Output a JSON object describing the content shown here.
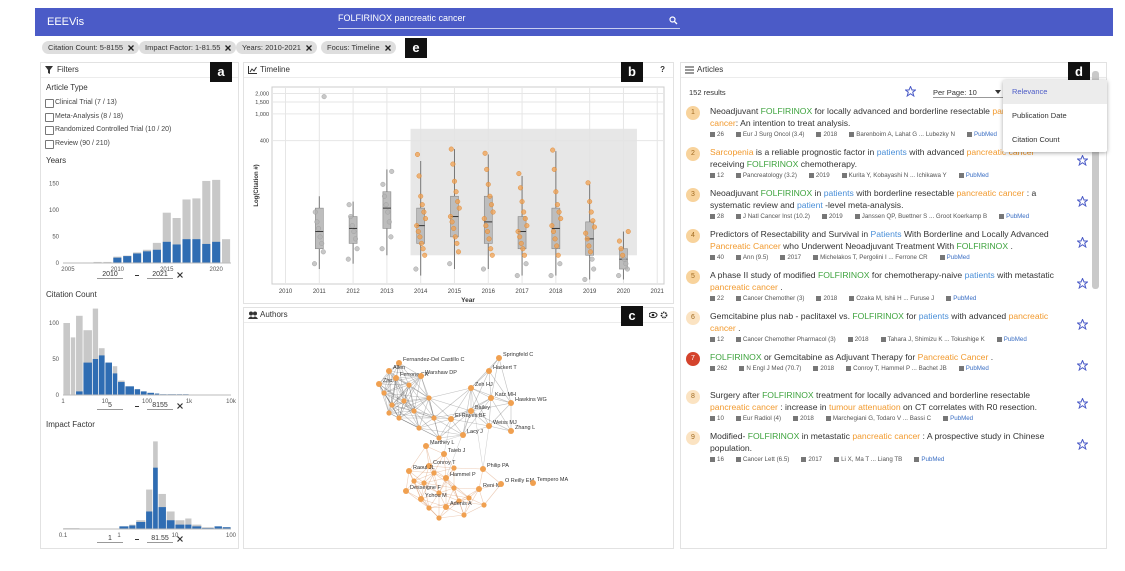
{
  "header": {
    "app_name": "EEEVis",
    "search": "FOLFIRINOX pancreatic cancer"
  },
  "chips": [
    "Citation Count: 5-8155",
    "Impact Factor: 1-81.55",
    "Years: 2010-2021",
    "Focus: Timeline"
  ],
  "callouts": [
    "a",
    "b",
    "c",
    "d",
    "e"
  ],
  "filters": {
    "title": "Filters",
    "article_type": {
      "title": "Article Type",
      "options": [
        "Clinical Trial (7 / 13)",
        "Meta-Analysis (8 / 18)",
        "Randomized Controlled Trial (10 / 20)",
        "Review (90 / 210)"
      ]
    },
    "years": {
      "title": "Years",
      "type": "histogram",
      "x": [
        2005,
        2006,
        2007,
        2008,
        2009,
        2010,
        2011,
        2012,
        2013,
        2014,
        2015,
        2016,
        2017,
        2018,
        2019,
        2020,
        2021
      ],
      "total": [
        0,
        0,
        1,
        2,
        2,
        12,
        14,
        20,
        25,
        38,
        95,
        85,
        120,
        122,
        155,
        157,
        45
      ],
      "filtered": [
        0,
        0,
        0,
        0,
        0,
        10,
        13,
        18,
        22,
        25,
        40,
        35,
        45,
        45,
        36,
        40,
        0
      ],
      "colors": {
        "total": "#c8c8c8",
        "filtered": "#2f6db3"
      },
      "xlim": [
        2004.5,
        2021.5
      ],
      "xticks": [
        2005,
        2010,
        2015,
        2020
      ],
      "ylim": [
        0,
        170
      ],
      "yticks": [
        0,
        50,
        100,
        150
      ],
      "range": [
        "2010",
        "2021"
      ]
    },
    "citation_count": {
      "title": "Citation Count",
      "type": "histogram",
      "log_x": true,
      "bins": [
        1,
        1.5,
        2,
        3,
        5,
        7,
        10,
        15,
        20,
        30,
        50,
        70,
        100,
        150,
        200,
        300,
        500,
        700,
        1000,
        2000,
        10000
      ],
      "total": [
        100,
        80,
        110,
        90,
        120,
        65,
        45,
        40,
        20,
        12,
        8,
        5,
        3,
        2,
        1,
        1,
        1,
        1,
        0,
        0
      ],
      "filtered": [
        0,
        0,
        5,
        45,
        50,
        55,
        45,
        30,
        18,
        12,
        8,
        5,
        3,
        2,
        1,
        1,
        1,
        1,
        0,
        0
      ],
      "colors": {
        "total": "#c8c8c8",
        "filtered": "#2f6db3"
      },
      "xlim": [
        1,
        10000
      ],
      "xticks": [
        1,
        10,
        100,
        {
          "value": 1000,
          "label": "1k"
        },
        {
          "value": 10000,
          "label": "10k"
        }
      ],
      "ylim": [
        0,
        125
      ],
      "yticks": [
        0,
        50,
        100
      ],
      "range": [
        "5",
        "8155"
      ]
    },
    "impact_factor": {
      "title": "Impact Factor",
      "type": "histogram",
      "log_x": true,
      "bins": [
        0.1,
        0.2,
        0.3,
        0.5,
        0.7,
        1,
        1.5,
        2,
        3,
        4,
        5,
        7,
        10,
        15,
        20,
        30,
        50,
        70,
        100
      ],
      "total": [
        1,
        0,
        0,
        0,
        0,
        3,
        5,
        10,
        45,
        100,
        40,
        20,
        10,
        12,
        5,
        2,
        3,
        2
      ],
      "filtered": [
        0,
        0,
        0,
        0,
        0,
        3,
        4,
        8,
        20,
        70,
        25,
        10,
        5,
        5,
        3,
        1,
        3,
        2
      ],
      "colors": {
        "total": "#c8c8c8",
        "filtered": "#2f6db3"
      },
      "xlim": [
        0.1,
        100
      ],
      "xticks": [
        0.1,
        1,
        10,
        100
      ],
      "ylim": [
        0,
        105
      ],
      "range": [
        "1",
        "81.55"
      ]
    }
  },
  "timeline": {
    "title": "Timeline",
    "help": "?",
    "type": "box",
    "log_y": true,
    "grid": true,
    "ylabel": "Log(Citation #)",
    "xlabel": "Year",
    "xlim": [
      2009.6,
      2021.2
    ],
    "xticks": [
      2010,
      2011,
      2012,
      2013,
      2014,
      2015,
      2016,
      2017,
      2018,
      2019,
      2020,
      2021
    ],
    "ylim": [
      3,
      2500
    ],
    "yticks": [
      {
        "value": 2000,
        "label": "2,000"
      },
      {
        "value": 1500,
        "label": "1,500"
      },
      {
        "value": 1000,
        "label": "1,000"
      },
      400
    ],
    "brush": {
      "x": [
        2013.7,
        2020.4
      ],
      "y": [
        8,
        600
      ]
    },
    "highlight_color": "#f0a050",
    "muted_color": "#b5b5b5",
    "years": [
      2011,
      2012,
      2013,
      2014,
      2015,
      2016,
      2017,
      2018,
      2019,
      2020
    ],
    "boxes": [
      {
        "min": 5,
        "q1": 10,
        "median": 18,
        "q3": 40,
        "max": 60
      },
      {
        "min": 6,
        "q1": 12,
        "median": 20,
        "q3": 30,
        "max": 50
      },
      {
        "min": 8,
        "q1": 20,
        "median": 40,
        "q3": 70,
        "max": 150
      },
      {
        "min": 4,
        "q1": 12,
        "median": 22,
        "q3": 40,
        "max": 200
      },
      {
        "min": 5,
        "q1": 15,
        "median": 30,
        "q3": 60,
        "max": 300
      },
      {
        "min": 5,
        "q1": 12,
        "median": 25,
        "q3": 60,
        "max": 250
      },
      {
        "min": 4,
        "q1": 10,
        "median": 18,
        "q3": 30,
        "max": 120
      },
      {
        "min": 4,
        "q1": 10,
        "median": 20,
        "q3": 40,
        "max": 280
      },
      {
        "min": 3.5,
        "q1": 8,
        "median": 14,
        "q3": 25,
        "max": 90
      },
      {
        "min": 3.5,
        "q1": 5,
        "median": 7,
        "q3": 10,
        "max": 18
      }
    ],
    "points": [
      [
        6,
        9,
        12,
        15,
        20,
        25,
        35,
        1800
      ],
      [
        7,
        10,
        14,
        18,
        22,
        30,
        45
      ],
      [
        10,
        15,
        25,
        35,
        45,
        60,
        90,
        140
      ],
      [
        5,
        8,
        10,
        12,
        15,
        18,
        22,
        28,
        35,
        45,
        60,
        120,
        250
      ],
      [
        6,
        9,
        12,
        15,
        20,
        25,
        30,
        40,
        50,
        70,
        100,
        180,
        300
      ],
      [
        5,
        8,
        10,
        14,
        18,
        22,
        28,
        35,
        45,
        60,
        90,
        150,
        260
      ],
      [
        4,
        6,
        8,
        10,
        12,
        15,
        18,
        22,
        28,
        35,
        50,
        80,
        130
      ],
      [
        4,
        6,
        8,
        11,
        14,
        18,
        22,
        28,
        35,
        45,
        70,
        150,
        290
      ],
      [
        3.5,
        5,
        7,
        9,
        11,
        14,
        17,
        21,
        26,
        35,
        50,
        95
      ],
      [
        4,
        5,
        6,
        7,
        8,
        10,
        13,
        18
      ]
    ]
  },
  "authors": {
    "title": "Authors",
    "node_color": "#f0a050",
    "nodes": [
      "Springfeld C",
      "Hackert T",
      "Fernandez-Del Castillo C",
      "Allen",
      "Ferrone CR",
      "Warshaw DP",
      "Zhu",
      "Zeh HJ",
      "Katz MH",
      "Hawkins WG",
      "Bailey",
      "El-Rayes BF",
      "Weiss MJ",
      "Zhang L",
      "Lacy J",
      "Marthey L",
      "Taieb J",
      "Conroy T",
      "Raoul JL",
      "Philip PA",
      "Hammel P",
      "Reni M",
      "O Reilly EM",
      "Tempero MA",
      "Desseigne F",
      "Ychou M",
      "Adenis A"
    ]
  },
  "articles": {
    "title": "Articles",
    "results": "152 results",
    "per_page": "Per Page: 10",
    "sort_options": [
      "Relevance",
      "Publication Date",
      "Citation Count"
    ],
    "highlight_colors": {
      "drug": "#3ea33e",
      "disease": "#f29a2e",
      "population": "#4a8fd8"
    },
    "items": [
      {
        "rank": 1,
        "rank_color": "#f8d39c",
        "title": [
          "Neoadjuvant ",
          {
            "text": "FOLFIRINOX",
            "kind": "drug"
          },
          " for locally advanced and borderline resectable ",
          {
            "text": "pancreatic cancer",
            "kind": "disease"
          },
          ": An intention to treat analysis."
        ],
        "citations": 26,
        "journal": "Eur J Surg Oncol (3.4)",
        "year": 2018,
        "authors": "Barenboim A, Lahat G ... Lubezky N",
        "link": "PubMed"
      },
      {
        "rank": 2,
        "rank_color": "#f8d39c",
        "title": [
          {
            "text": "Sarcopenia",
            "kind": "disease"
          },
          " is a reliable prognostic factor in ",
          {
            "text": "patients",
            "kind": "population"
          },
          " with advanced ",
          {
            "text": "pancreatic cancer",
            "kind": "disease"
          },
          " receiving ",
          {
            "text": "FOLFIRINOX",
            "kind": "drug"
          },
          " chemotherapy."
        ],
        "citations": 12,
        "journal": "Pancreatology (3.2)",
        "year": 2019,
        "authors": "Kurita Y, Kobayashi N ... Ichikawa Y",
        "link": "PubMed"
      },
      {
        "rank": 3,
        "rank_color": "#f8d39c",
        "title": [
          "Neoadjuvant ",
          {
            "text": "FOLFIRINOX",
            "kind": "drug"
          },
          " in ",
          {
            "text": "patients",
            "kind": "population"
          },
          " with borderline resectable ",
          {
            "text": "pancreatic cancer",
            "kind": "disease"
          },
          " : a systematic review and ",
          {
            "text": "patient",
            "kind": "population"
          },
          " -level meta-analysis."
        ],
        "citations": 28,
        "journal": "J Natl Cancer Inst (10.2)",
        "year": 2019,
        "authors": "Janssen QP, Buettner S ... Groot Koerkamp B",
        "link": "PubMed"
      },
      {
        "rank": 4,
        "rank_color": "#f8d39c",
        "title": [
          "Predictors of Resectability and Survival in ",
          {
            "text": "Patients",
            "kind": "population"
          },
          " With Borderline and Locally Advanced ",
          {
            "text": "Pancreatic Cancer",
            "kind": "disease"
          },
          " who Underwent Neoadjuvant Treatment With ",
          {
            "text": "FOLFIRINOX",
            "kind": "drug"
          },
          " ."
        ],
        "citations": 40,
        "journal": "Ann (9.5)",
        "year": 2017,
        "authors": "Michelakos T, Pergolini I ... Ferrone CR",
        "link": "PubMed"
      },
      {
        "rank": 5,
        "rank_color": "#f8d39c",
        "title": [
          "A phase II study of modified ",
          {
            "text": "FOLFIRINOX",
            "kind": "drug"
          },
          " for chemotherapy-naive ",
          {
            "text": "patients",
            "kind": "population"
          },
          " with metastatic ",
          {
            "text": "pancreatic cancer",
            "kind": "disease"
          },
          " ."
        ],
        "citations": 22,
        "journal": "Cancer Chemother (3)",
        "year": 2018,
        "authors": "Ozaka M, Ishii H ... Furuse J",
        "link": "PubMed"
      },
      {
        "rank": 6,
        "rank_color": "#fbe3c2",
        "title": [
          "Gemcitabine plus nab - paclitaxel vs. ",
          {
            "text": "FOLFIRINOX",
            "kind": "drug"
          },
          " for ",
          {
            "text": "patients",
            "kind": "population"
          },
          " with advanced ",
          {
            "text": "pancreatic cancer",
            "kind": "disease"
          },
          " ."
        ],
        "citations": 12,
        "journal": "Cancer Chemother Pharmacol (3)",
        "year": 2018,
        "authors": "Tahara J, Shimizu K ... Tokushige K",
        "link": "PubMed"
      },
      {
        "rank": 7,
        "rank_color": "#d4432c",
        "title": [
          {
            "text": "FOLFIRINOX",
            "kind": "drug"
          },
          " or Gemcitabine as Adjuvant Therapy for ",
          {
            "text": "Pancreatic Cancer",
            "kind": "disease"
          },
          " ."
        ],
        "citations": 262,
        "journal": "N Engl J Med (70.7)",
        "year": 2018,
        "authors": "Conroy T, Hammel P ... Bachet JB",
        "link": "PubMed"
      },
      {
        "rank": 8,
        "rank_color": "#fbe3c2",
        "title": [
          "Surgery after ",
          {
            "text": "FOLFIRINOX",
            "kind": "drug"
          },
          " treatment for locally advanced and borderline resectable ",
          {
            "text": "pancreatic cancer",
            "kind": "disease"
          },
          " : increase in ",
          {
            "text": "tumour attenuation",
            "kind": "disease"
          },
          " on CT correlates with R0 resection."
        ],
        "citations": 10,
        "journal": "Eur Radiol (4)",
        "year": 2018,
        "authors": "Marchegiani G, Todaro V ... Bassi C",
        "link": "PubMed"
      },
      {
        "rank": 9,
        "rank_color": "#fbe3c2",
        "title": [
          "Modified- ",
          {
            "text": "FOLFIRINOX",
            "kind": "drug"
          },
          " in metastatic ",
          {
            "text": "pancreatic cancer",
            "kind": "disease"
          },
          " : A prospective study in Chinese population."
        ],
        "citations": 16,
        "journal": "Cancer Lett (6.5)",
        "year": 2017,
        "authors": "Li X, Ma T ... Liang TB",
        "link": "PubMed"
      }
    ]
  }
}
